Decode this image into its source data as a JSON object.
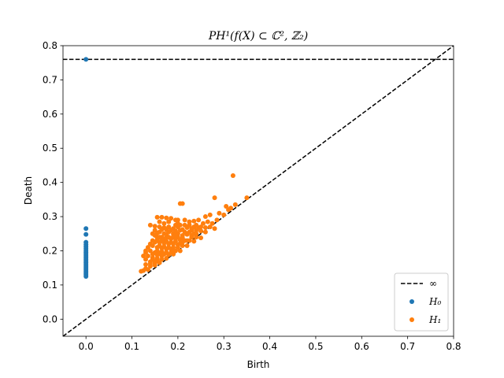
{
  "chart_data": {
    "type": "scatter",
    "title": "PH¹(f(X) ⊂ ℂ², ℤ₂)",
    "xlabel": "Birth",
    "ylabel": "Death",
    "xlim": [
      -0.05,
      0.8
    ],
    "ylim": [
      -0.05,
      0.8
    ],
    "xticks": [
      "0.0",
      "0.1",
      "0.2",
      "0.3",
      "0.4",
      "0.5",
      "0.6",
      "0.7",
      "0.8"
    ],
    "yticks": [
      "0.0",
      "0.1",
      "0.2",
      "0.3",
      "0.4",
      "0.5",
      "0.6",
      "0.7",
      "0.8"
    ],
    "infinity_line": {
      "name": "∞",
      "y": 0.76,
      "style": "dashed",
      "color": "#000000"
    },
    "diagonal": {
      "style": "dashed",
      "color": "#000000"
    },
    "legend_position": "bottom-right",
    "series": [
      {
        "name": "H₀",
        "color": "#1f77b4",
        "points": [
          [
            0.0,
            0.76
          ],
          [
            0.0,
            0.265
          ],
          [
            0.0,
            0.248
          ],
          [
            0.0,
            0.225
          ],
          [
            0.0,
            0.218
          ],
          [
            0.0,
            0.212
          ],
          [
            0.0,
            0.206
          ],
          [
            0.0,
            0.2
          ],
          [
            0.0,
            0.195
          ],
          [
            0.0,
            0.19
          ],
          [
            0.0,
            0.185
          ],
          [
            0.0,
            0.18
          ],
          [
            0.0,
            0.175
          ],
          [
            0.0,
            0.17
          ],
          [
            0.0,
            0.165
          ],
          [
            0.0,
            0.16
          ],
          [
            0.0,
            0.155
          ],
          [
            0.0,
            0.15
          ],
          [
            0.0,
            0.145
          ],
          [
            0.0,
            0.14
          ],
          [
            0.0,
            0.135
          ],
          [
            0.0,
            0.13
          ],
          [
            0.0,
            0.125
          ]
        ]
      },
      {
        "name": "H₁",
        "color": "#ff7f0e",
        "points": [
          [
            0.32,
            0.42
          ],
          [
            0.35,
            0.355
          ],
          [
            0.28,
            0.355
          ],
          [
            0.205,
            0.338
          ],
          [
            0.21,
            0.338
          ],
          [
            0.305,
            0.33
          ],
          [
            0.325,
            0.335
          ],
          [
            0.31,
            0.32
          ],
          [
            0.29,
            0.31
          ],
          [
            0.27,
            0.305
          ],
          [
            0.26,
            0.3
          ],
          [
            0.155,
            0.298
          ],
          [
            0.165,
            0.298
          ],
          [
            0.175,
            0.296
          ],
          [
            0.185,
            0.295
          ],
          [
            0.195,
            0.29
          ],
          [
            0.2,
            0.29
          ],
          [
            0.215,
            0.29
          ],
          [
            0.225,
            0.285
          ],
          [
            0.235,
            0.287
          ],
          [
            0.245,
            0.29
          ],
          [
            0.255,
            0.28
          ],
          [
            0.14,
            0.275
          ],
          [
            0.15,
            0.272
          ],
          [
            0.16,
            0.27
          ],
          [
            0.17,
            0.268
          ],
          [
            0.18,
            0.27
          ],
          [
            0.19,
            0.265
          ],
          [
            0.2,
            0.27
          ],
          [
            0.21,
            0.262
          ],
          [
            0.22,
            0.268
          ],
          [
            0.23,
            0.265
          ],
          [
            0.24,
            0.26
          ],
          [
            0.25,
            0.258
          ],
          [
            0.26,
            0.255
          ],
          [
            0.27,
            0.27
          ],
          [
            0.28,
            0.265
          ],
          [
            0.15,
            0.26
          ],
          [
            0.16,
            0.255
          ],
          [
            0.17,
            0.25
          ],
          [
            0.18,
            0.255
          ],
          [
            0.19,
            0.25
          ],
          [
            0.2,
            0.25
          ],
          [
            0.21,
            0.245
          ],
          [
            0.22,
            0.248
          ],
          [
            0.23,
            0.245
          ],
          [
            0.24,
            0.24
          ],
          [
            0.25,
            0.238
          ],
          [
            0.145,
            0.25
          ],
          [
            0.15,
            0.245
          ],
          [
            0.155,
            0.24
          ],
          [
            0.165,
            0.24
          ],
          [
            0.175,
            0.238
          ],
          [
            0.185,
            0.235
          ],
          [
            0.195,
            0.235
          ],
          [
            0.205,
            0.232
          ],
          [
            0.215,
            0.23
          ],
          [
            0.225,
            0.23
          ],
          [
            0.235,
            0.228
          ],
          [
            0.145,
            0.23
          ],
          [
            0.15,
            0.225
          ],
          [
            0.16,
            0.225
          ],
          [
            0.17,
            0.222
          ],
          [
            0.18,
            0.22
          ],
          [
            0.19,
            0.22
          ],
          [
            0.2,
            0.218
          ],
          [
            0.21,
            0.215
          ],
          [
            0.22,
            0.215
          ],
          [
            0.14,
            0.22
          ],
          [
            0.145,
            0.215
          ],
          [
            0.155,
            0.21
          ],
          [
            0.165,
            0.208
          ],
          [
            0.175,
            0.205
          ],
          [
            0.185,
            0.205
          ],
          [
            0.195,
            0.2
          ],
          [
            0.205,
            0.2
          ],
          [
            0.135,
            0.21
          ],
          [
            0.14,
            0.2
          ],
          [
            0.15,
            0.195
          ],
          [
            0.16,
            0.192
          ],
          [
            0.17,
            0.19
          ],
          [
            0.18,
            0.188
          ],
          [
            0.19,
            0.19
          ],
          [
            0.13,
            0.195
          ],
          [
            0.135,
            0.185
          ],
          [
            0.145,
            0.18
          ],
          [
            0.155,
            0.178
          ],
          [
            0.165,
            0.175
          ],
          [
            0.175,
            0.178
          ],
          [
            0.13,
            0.175
          ],
          [
            0.14,
            0.168
          ],
          [
            0.15,
            0.165
          ],
          [
            0.16,
            0.165
          ],
          [
            0.13,
            0.16
          ],
          [
            0.14,
            0.155
          ],
          [
            0.15,
            0.158
          ],
          [
            0.13,
            0.148
          ],
          [
            0.135,
            0.145
          ],
          [
            0.125,
            0.142
          ],
          [
            0.12,
            0.14
          ],
          [
            0.13,
            0.2
          ],
          [
            0.125,
            0.185
          ],
          [
            0.22,
            0.23
          ],
          [
            0.23,
            0.24
          ],
          [
            0.24,
            0.25
          ],
          [
            0.26,
            0.268
          ],
          [
            0.18,
            0.285
          ],
          [
            0.17,
            0.28
          ],
          [
            0.16,
            0.285
          ],
          [
            0.2,
            0.28
          ],
          [
            0.215,
            0.275
          ],
          [
            0.225,
            0.275
          ],
          [
            0.235,
            0.27
          ],
          [
            0.245,
            0.268
          ],
          [
            0.165,
            0.262
          ],
          [
            0.185,
            0.26
          ],
          [
            0.195,
            0.258
          ],
          [
            0.205,
            0.26
          ],
          [
            0.215,
            0.255
          ],
          [
            0.225,
            0.255
          ],
          [
            0.235,
            0.25
          ],
          [
            0.16,
            0.24
          ],
          [
            0.17,
            0.235
          ],
          [
            0.19,
            0.242
          ],
          [
            0.2,
            0.24
          ],
          [
            0.21,
            0.238
          ],
          [
            0.155,
            0.232
          ],
          [
            0.165,
            0.23
          ],
          [
            0.175,
            0.228
          ],
          [
            0.185,
            0.225
          ],
          [
            0.195,
            0.228
          ],
          [
            0.205,
            0.222
          ],
          [
            0.16,
            0.215
          ],
          [
            0.17,
            0.212
          ],
          [
            0.18,
            0.21
          ],
          [
            0.19,
            0.21
          ],
          [
            0.155,
            0.2
          ],
          [
            0.165,
            0.198
          ],
          [
            0.175,
            0.195
          ],
          [
            0.185,
            0.195
          ],
          [
            0.145,
            0.19
          ],
          [
            0.155,
            0.188
          ],
          [
            0.165,
            0.185
          ],
          [
            0.145,
            0.175
          ],
          [
            0.155,
            0.172
          ],
          [
            0.14,
            0.162
          ],
          [
            0.15,
            0.17
          ],
          [
            0.23,
            0.26
          ],
          [
            0.24,
            0.275
          ],
          [
            0.25,
            0.27
          ],
          [
            0.265,
            0.285
          ],
          [
            0.275,
            0.28
          ],
          [
            0.3,
            0.305
          ],
          [
            0.315,
            0.325
          ],
          [
            0.285,
            0.29
          ],
          [
            0.195,
            0.275
          ],
          [
            0.205,
            0.275
          ],
          [
            0.175,
            0.262
          ],
          [
            0.195,
            0.245
          ],
          [
            0.175,
            0.248
          ],
          [
            0.155,
            0.252
          ],
          [
            0.18,
            0.24
          ],
          [
            0.21,
            0.225
          ],
          [
            0.2,
            0.21
          ],
          [
            0.19,
            0.2
          ]
        ]
      }
    ]
  }
}
